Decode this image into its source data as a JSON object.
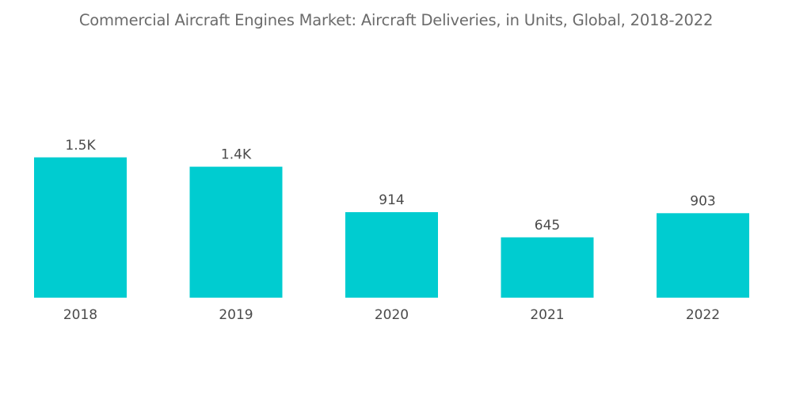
{
  "chart_data": {
    "type": "bar",
    "title": "Commercial Aircraft Engines Market: Aircraft Deliveries, in Units, Global, 2018-2022",
    "categories": [
      "2018",
      "2019",
      "2020",
      "2021",
      "2022"
    ],
    "values": [
      1500,
      1400,
      914,
      645,
      903
    ],
    "data_labels": [
      "1.5K",
      "1.4K",
      "914",
      "645",
      "903"
    ],
    "xlabel": "",
    "ylabel": "",
    "ylim": [
      0,
      1600
    ],
    "grid": false,
    "legend": "none",
    "colors": {
      "bar": "#00ccd0",
      "text": "#4a4a4a",
      "title": "#6b6b6b"
    }
  }
}
